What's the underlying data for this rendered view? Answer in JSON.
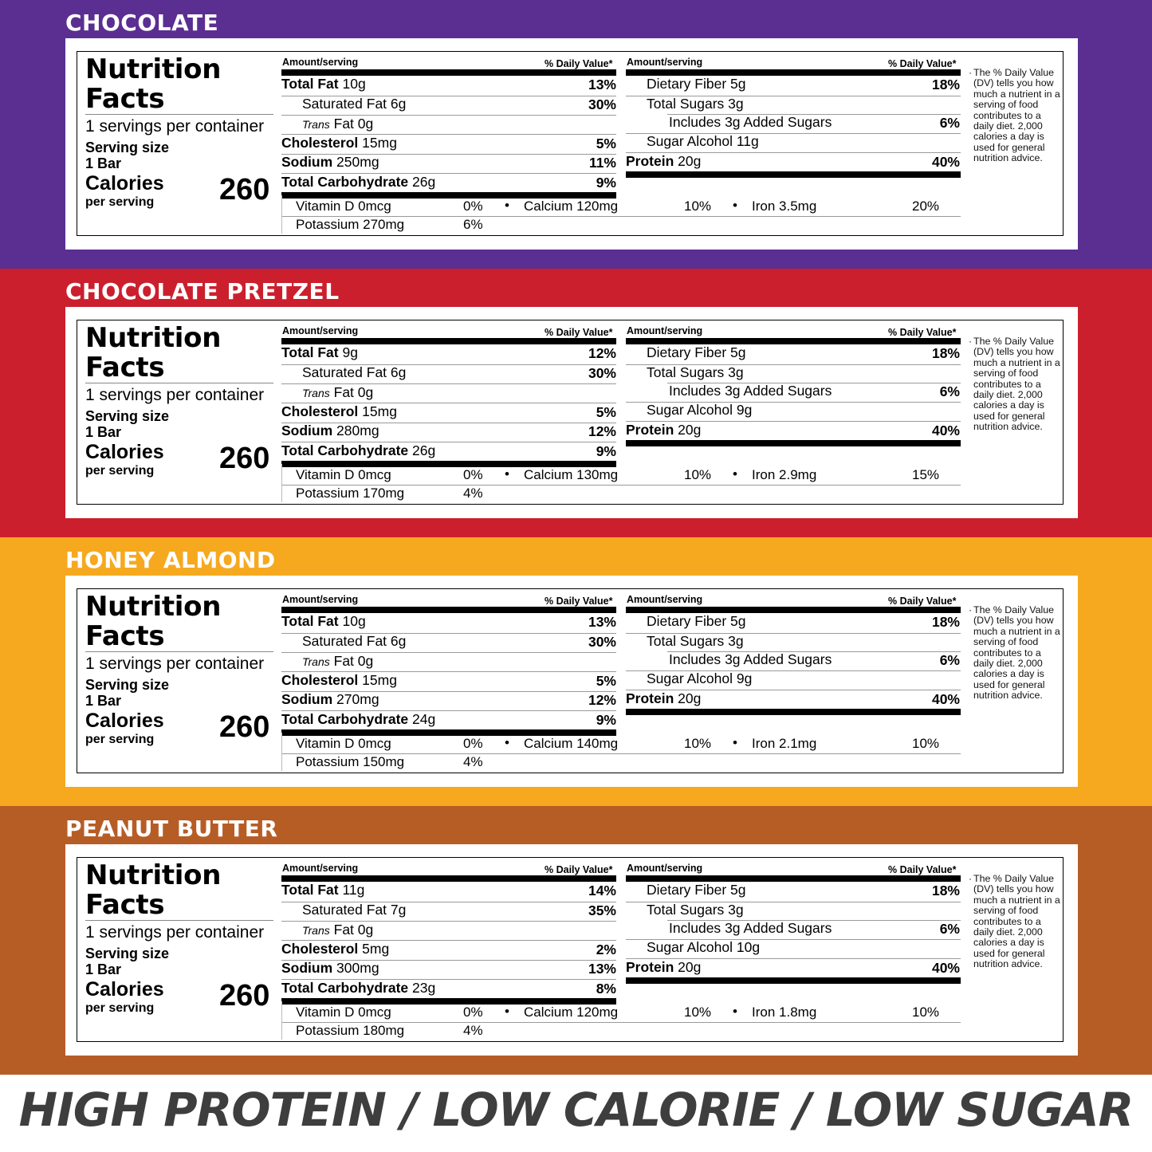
{
  "common": {
    "nf_title_line1": "Nutrition",
    "nf_title_line2": "Facts",
    "servings": "1 servings per container",
    "serving_size_label": "Serving size",
    "serving_size_value": "1 Bar",
    "calories_label": "Calories",
    "calories_sub": "per serving",
    "amount_header": "Amount/serving",
    "dv_header": "% Daily Value*",
    "dv_note": "The % Daily Value (DV) tells you how much a nutrient in a serving of food contributes to a daily diet. 2,000 calories a day is used for general nutrition advice.",
    "bullet": "•",
    "labels": {
      "total_fat": "Total Fat",
      "sat_fat": "Saturated Fat",
      "trans": "Trans",
      "trans_fat": "Fat",
      "cholesterol": "Cholesterol",
      "sodium": "Sodium",
      "total_carb": "Total Carbohydrate",
      "fiber": "Dietary Fiber",
      "total_sugars": "Total Sugars",
      "added_sugars_prefix": "Includes",
      "added_sugars_suffix": "Added Sugars",
      "sugar_alcohol": "Sugar Alcohol",
      "protein": "Protein",
      "vitamin_d": "Vitamin D",
      "calcium": "Calcium",
      "iron": "Iron",
      "potassium": "Potassium"
    }
  },
  "flavors": [
    {
      "name": "CHOCOLATE",
      "color": "#5b2e91",
      "calories": "260",
      "total_fat": "10g",
      "total_fat_dv": "13%",
      "sat_fat": "6g",
      "sat_fat_dv": "30%",
      "trans_fat": "0g",
      "cholesterol": "15mg",
      "cholesterol_dv": "5%",
      "sodium": "250mg",
      "sodium_dv": "11%",
      "total_carb": "26g",
      "total_carb_dv": "9%",
      "fiber": "5g",
      "fiber_dv": "18%",
      "total_sugars": "3g",
      "added_sugars": "3g",
      "added_sugars_dv": "6%",
      "sugar_alcohol": "11g",
      "protein": "20g",
      "protein_dv": "40%",
      "vitamin_d": "0mcg",
      "vitamin_d_dv": "0%",
      "calcium": "120mg",
      "calcium_dv": "10%",
      "iron": "3.5mg",
      "iron_dv": "20%",
      "potassium": "270mg",
      "potassium_dv": "6%"
    },
    {
      "name": "CHOCOLATE PRETZEL",
      "color": "#cc1f2d",
      "calories": "260",
      "total_fat": "9g",
      "total_fat_dv": "12%",
      "sat_fat": "6g",
      "sat_fat_dv": "30%",
      "trans_fat": "0g",
      "cholesterol": "15mg",
      "cholesterol_dv": "5%",
      "sodium": "280mg",
      "sodium_dv": "12%",
      "total_carb": "26g",
      "total_carb_dv": "9%",
      "fiber": "5g",
      "fiber_dv": "18%",
      "total_sugars": "3g",
      "added_sugars": "3g",
      "added_sugars_dv": "6%",
      "sugar_alcohol": "9g",
      "protein": "20g",
      "protein_dv": "40%",
      "vitamin_d": "0mcg",
      "vitamin_d_dv": "0%",
      "calcium": "130mg",
      "calcium_dv": "10%",
      "iron": "2.9mg",
      "iron_dv": "15%",
      "potassium": "170mg",
      "potassium_dv": "4%"
    },
    {
      "name": "HONEY ALMOND",
      "color": "#f6a91e",
      "calories": "260",
      "total_fat": "10g",
      "total_fat_dv": "13%",
      "sat_fat": "6g",
      "sat_fat_dv": "30%",
      "trans_fat": "0g",
      "cholesterol": "15mg",
      "cholesterol_dv": "5%",
      "sodium": "270mg",
      "sodium_dv": "12%",
      "total_carb": "24g",
      "total_carb_dv": "9%",
      "fiber": "5g",
      "fiber_dv": "18%",
      "total_sugars": "3g",
      "added_sugars": "3g",
      "added_sugars_dv": "6%",
      "sugar_alcohol": "9g",
      "protein": "20g",
      "protein_dv": "40%",
      "vitamin_d": "0mcg",
      "vitamin_d_dv": "0%",
      "calcium": "140mg",
      "calcium_dv": "10%",
      "iron": "2.1mg",
      "iron_dv": "10%",
      "potassium": "150mg",
      "potassium_dv": "4%"
    },
    {
      "name": "PEANUT BUTTER",
      "color": "#b65d26",
      "calories": "260",
      "total_fat": "11g",
      "total_fat_dv": "14%",
      "sat_fat": "7g",
      "sat_fat_dv": "35%",
      "trans_fat": "0g",
      "cholesterol": "5mg",
      "cholesterol_dv": "2%",
      "sodium": "300mg",
      "sodium_dv": "13%",
      "total_carb": "23g",
      "total_carb_dv": "8%",
      "fiber": "5g",
      "fiber_dv": "18%",
      "total_sugars": "3g",
      "added_sugars": "3g",
      "added_sugars_dv": "6%",
      "sugar_alcohol": "10g",
      "protein": "20g",
      "protein_dv": "40%",
      "vitamin_d": "0mcg",
      "vitamin_d_dv": "0%",
      "calcium": "120mg",
      "calcium_dv": "10%",
      "iron": "1.8mg",
      "iron_dv": "10%",
      "potassium": "180mg",
      "potassium_dv": "4%"
    }
  ],
  "tagline": "HIGH PROTEIN / LOW CALORIE / LOW SUGAR"
}
